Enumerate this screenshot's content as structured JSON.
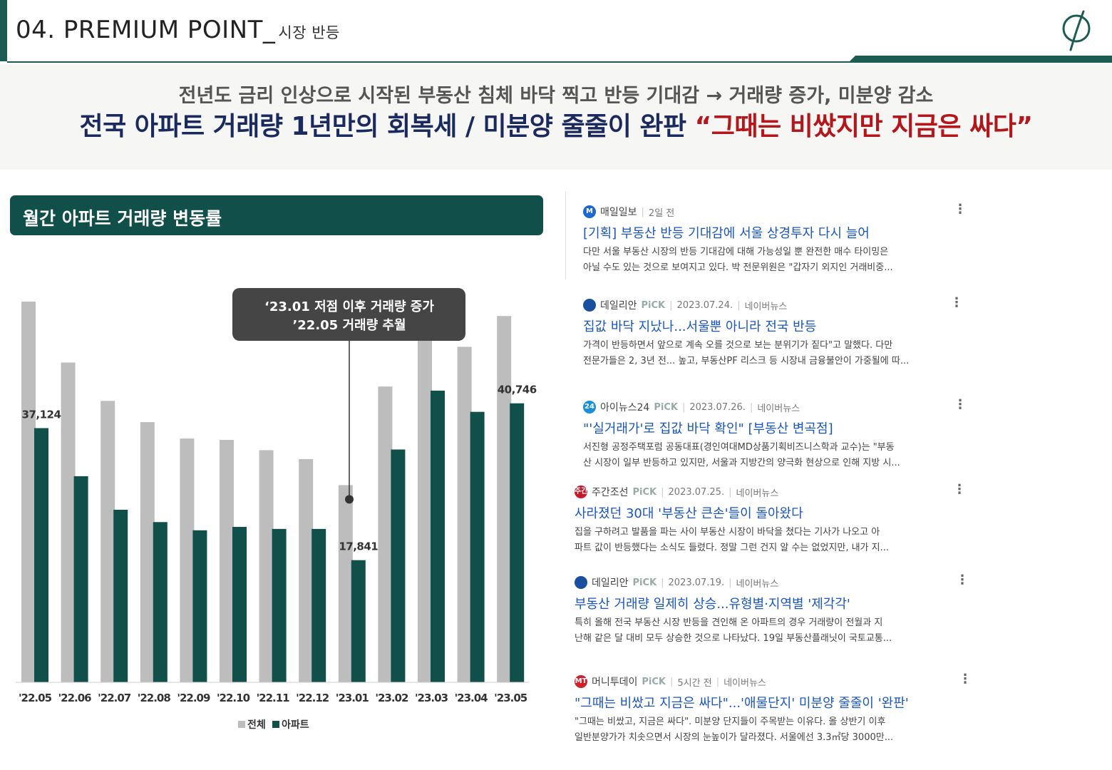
{
  "header": {
    "title": "04. PREMIUM POINT_",
    "subtitle": "시장 반등"
  },
  "banner": {
    "line1": "전년도 금리 인상으로 시작된 부동산 침체 바닥 찍고 반등 기대감 → 거래량 증가, 미분양 감소",
    "line2_main": "전국 아파트 거래량 1년만의 회복세 / 미분양 줄줄이 완판 ",
    "line2_quote": "“그때는 비쌌지만 지금은 싸다”",
    "quote_color": "#b3161b",
    "main_color": "#1b2a5e"
  },
  "chart_panel": {
    "heading": "월간 아파트 거래량 변동률"
  },
  "chart_data": {
    "type": "bar",
    "categories": [
      "'22.05",
      "'22.06",
      "'22.07",
      "'22.08",
      "'22.09",
      "'22.10",
      "'22.11",
      "'22.12",
      "'23.01",
      "'23.02",
      "'23.03",
      "'23.04",
      "'23.05"
    ],
    "series": [
      {
        "name": "전체",
        "color": "#bdbdbd",
        "values": [
          55600,
          46700,
          41100,
          38000,
          35600,
          35400,
          33900,
          32600,
          28800,
          43200,
          51800,
          49000,
          53500
        ]
      },
      {
        "name": "아파트",
        "color": "#114f4a",
        "values": [
          37124,
          30100,
          25200,
          23400,
          22200,
          22700,
          22400,
          22400,
          17841,
          34000,
          42600,
          39500,
          40746
        ]
      }
    ],
    "data_labels": [
      {
        "category": "'22.05",
        "series": "아파트",
        "text": "37,124"
      },
      {
        "category": "'23.01",
        "series": "아파트",
        "text": "17,841"
      },
      {
        "category": "'23.05",
        "series": "아파트",
        "text": "40,746"
      }
    ],
    "annotation": {
      "lines": [
        "‘23.01 저점 이후 거래량 증가",
        "’22.05 거래량 추월"
      ],
      "target_category": "'23.01"
    },
    "ylim": [
      0,
      58000
    ],
    "grid": false,
    "legend": "bottom-center",
    "title": "",
    "xlabel": "",
    "ylabel": ""
  },
  "news": [
    {
      "icon": "M",
      "icon_color": "#1e66d0",
      "source": "매일일보",
      "pick": "",
      "date": "2일 전",
      "portal": "",
      "title": "[기획] 부동산 반등 기대감에 서울 상경투자 다시 늘어",
      "snippet1": "다만 서울 부동산 시장의 반등 기대감에 대해 가능성일 뿐 완전한 매수 타이밍은",
      "snippet2": "아닐 수도 있는 것으로 보여지고 있다. 박 전문위원은 \"갑자기 외지인 거래비중...",
      "thumb": "city"
    },
    {
      "icon": "",
      "icon_color": "#1a4fa0",
      "source": "데일리안",
      "pick": "PiCK",
      "date": "2023.07.24.",
      "portal": "네이버뉴스",
      "title": "집값 바닥 지났나...서울뿐 아니라 전국 반등",
      "snippet1": "가격이 반등하면서 앞으로 계속 오를 것으로 보는 분위기가 짙다\"고 말했다. 다만",
      "snippet2": "전문가들은 2, 3년 전... 높고, 부동산PF 리스크 등 시장내 금융불안이 가중될에 따...",
      "thumb": "phone"
    },
    {
      "icon": "24",
      "icon_color": "#1c8fd9",
      "source": "아이뉴스24",
      "pick": "PiCK",
      "date": "2023.07.26.",
      "portal": "네이버뉴스",
      "title": "\"'실거래가'로 집값 바닥 확인\" [부동산 변곡점]",
      "snippet1": "서진형 공정주택포럼 공동대표(경인여대MD상품기획비즈니스학과 교수)는 \"부동",
      "snippet2": "산 시장이 일부 반등하고 있지만, 서울과 지방간의 양극화 현상으로 인해 지방 시...",
      "thumb": "office"
    },
    {
      "icon": "주간",
      "icon_color": "#c8192b",
      "source": "주간조선",
      "pick": "PiCK",
      "date": "2023.07.25.",
      "portal": "네이버뉴스",
      "title": "사라졌던 30대 '부동산 큰손'들이 돌아왔다",
      "snippet1": "집을 구하려고 발품을 파는 사이 부동산 시장이 바닥을 쳤다는 기사가 나오고 아",
      "snippet2": "파트 값이 반등했다는 소식도 들렸다. 정말 그런 건지 알 수는 없었지만, 내가 지...",
      "thumb": "agency"
    },
    {
      "icon": "",
      "icon_color": "#1a4fa0",
      "source": "데일리안",
      "pick": "PiCK",
      "date": "2023.07.19.",
      "portal": "네이버뉴스",
      "title": "부동산 거래량 일제히 상승...유형별·지역별 '제각각'",
      "snippet1": "특히 올해 전국 부동산 시장 반등을 견인해 온 아파트의 경우 거래량이 전월과 지",
      "snippet2": "난해 같은 달 대비 모두 상승한 것으로 나타났다. 19일 부동산플래닛이 국토교통...",
      "thumb": "dense"
    },
    {
      "icon": "MT",
      "icon_color": "#d0202a",
      "source": "머니투데이",
      "pick": "PiCK",
      "date": "5시간 전",
      "portal": "네이버뉴스",
      "title": "\"그때는 비쌌고 지금은 싸다\"...'애물단지' 미분양 줄줄이 '완판'",
      "snippet1": "\"그때는 비쌌고, 지금은 싸다\". 미분양 단지들이 주목받는 이유다. 올 상반기 이후",
      "snippet2": "일반분양가가 치솟으면서 시장의 눈높이가 달라졌다. 서울에선 3.3㎡당 3000만...",
      "thumb": "viewers"
    }
  ]
}
